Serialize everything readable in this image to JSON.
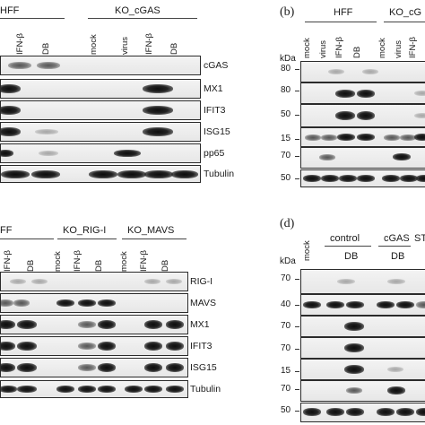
{
  "panel_a": {
    "group1": "HFF",
    "group2": "KO_cGAS",
    "lanes": [
      "IFN-β",
      "DB",
      "mock",
      "virus",
      "IFN-β",
      "DB"
    ],
    "rows": [
      "cGAS",
      "MX1",
      "IFIT3",
      "ISG15",
      "pp65",
      "Tubulin"
    ]
  },
  "panel_b": {
    "letter": "(b)",
    "group1": "HFF",
    "group2": "KO_cG",
    "lanes": [
      "mock",
      "virus",
      "IFN-β",
      "DB",
      "mock",
      "virus",
      "IFN-β"
    ],
    "kda_label": "kDa",
    "markers": [
      "80",
      "80",
      "50",
      "15",
      "70",
      "50"
    ]
  },
  "panel_c": {
    "group1": "FF",
    "group2": "KO_RIG-I",
    "group3": "KO_MAVS",
    "lanes": [
      "IFN-β",
      "DB",
      "mock",
      "IFN-β",
      "DB",
      "mock",
      "IFN-β",
      "DB"
    ],
    "rows": [
      "RIG-I",
      "MAVS",
      "MX1",
      "IFIT3",
      "ISG15",
      "Tubulin"
    ]
  },
  "panel_d": {
    "letter": "(d)",
    "mock_label": "mock",
    "group1": "control",
    "group2": "cGAS",
    "group3": "ST",
    "sub1": "DB",
    "sub2": "DB",
    "kda_label": "kDa",
    "markers": [
      "70",
      "40",
      "70",
      "70",
      "15",
      "70",
      "50"
    ]
  }
}
